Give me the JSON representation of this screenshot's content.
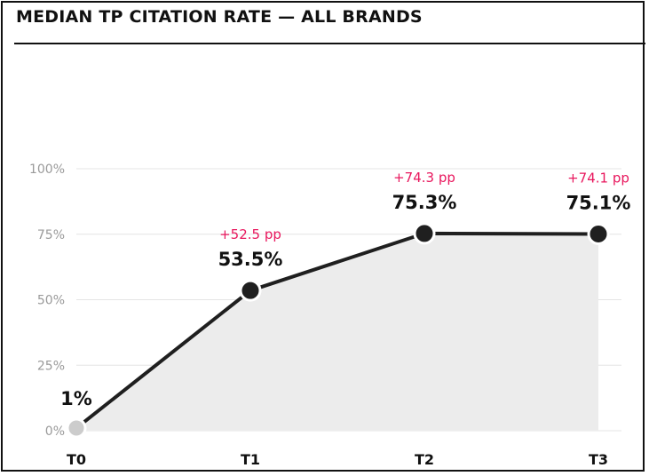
{
  "chart_data": {
    "type": "line",
    "title": "MEDIAN TP CITATION RATE — ALL BRANDS",
    "categories": [
      "T0",
      "T1",
      "T2",
      "T3"
    ],
    "values": [
      1,
      53.5,
      75.3,
      75.1
    ],
    "value_labels": [
      "1%",
      "53.5%",
      "75.3%",
      "75.1%"
    ],
    "delta_labels": [
      "",
      "+52.5 pp",
      "+74.3 pp",
      "+74.1 pp"
    ],
    "ylim": [
      0,
      100
    ],
    "yticks": [
      0,
      25,
      50,
      75,
      100
    ],
    "ytick_labels": [
      "0%",
      "25%",
      "50%",
      "75%",
      "100%"
    ],
    "xlabel": "",
    "ylabel": "",
    "grid": true,
    "colors": {
      "line": "#1f1f1f",
      "area": "#ececec",
      "grid": "#e4e4e4",
      "baseline_point": "#cccccc",
      "delta_text": "#e8175d"
    }
  }
}
